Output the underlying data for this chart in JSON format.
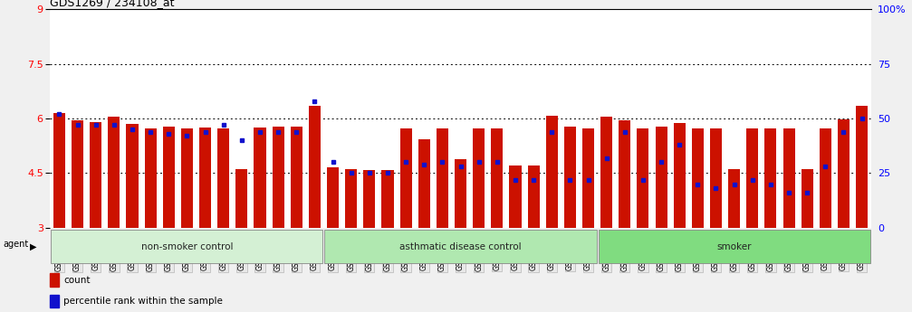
{
  "title": "GDS1269 / 234108_at",
  "samples": [
    "GSM38345",
    "GSM38346",
    "GSM38348",
    "GSM38350",
    "GSM38351",
    "GSM38353",
    "GSM38355",
    "GSM38356",
    "GSM38358",
    "GSM38362",
    "GSM38368",
    "GSM38371",
    "GSM38373",
    "GSM38377",
    "GSM38385",
    "GSM38361",
    "GSM38363",
    "GSM38364",
    "GSM38365",
    "GSM38370",
    "GSM38372",
    "GSM38375",
    "GSM38378",
    "GSM38379",
    "GSM38381",
    "GSM38383",
    "GSM38386",
    "GSM38387",
    "GSM38388",
    "GSM38389",
    "GSM38347",
    "GSM38349",
    "GSM38352",
    "GSM38354",
    "GSM38357",
    "GSM38359",
    "GSM38360",
    "GSM38366",
    "GSM38367",
    "GSM38369",
    "GSM38374",
    "GSM38376",
    "GSM38380",
    "GSM38382",
    "GSM38384"
  ],
  "counts": [
    6.15,
    5.95,
    5.9,
    6.05,
    5.85,
    5.72,
    5.78,
    5.72,
    5.75,
    5.72,
    4.62,
    5.75,
    5.78,
    5.78,
    6.35,
    4.65,
    4.62,
    4.58,
    4.58,
    5.72,
    5.42,
    5.72,
    4.88,
    5.72,
    5.72,
    4.72,
    4.72,
    6.08,
    5.78,
    5.72,
    6.05,
    5.95,
    5.72,
    5.78,
    5.88,
    5.72,
    5.72,
    4.62,
    5.72,
    5.72,
    5.72,
    4.62,
    5.72,
    5.98,
    6.35
  ],
  "percentile_ranks": [
    52,
    47,
    47,
    47,
    45,
    44,
    43,
    42,
    44,
    47,
    40,
    44,
    44,
    44,
    58,
    30,
    25,
    25,
    25,
    30,
    29,
    30,
    28,
    30,
    30,
    22,
    22,
    44,
    22,
    22,
    32,
    44,
    22,
    30,
    38,
    20,
    18,
    20,
    22,
    20,
    16,
    16,
    28,
    44,
    50
  ],
  "groups": [
    {
      "name": "non-smoker control",
      "start": 0,
      "end": 15
    },
    {
      "name": "asthmatic disease control",
      "start": 15,
      "end": 30
    },
    {
      "name": "smoker",
      "start": 30,
      "end": 45
    }
  ],
  "group_colors": [
    "#d4f0d4",
    "#b0e8b0",
    "#80dc80"
  ],
  "bar_color": "#cc1100",
  "dot_color": "#1111cc",
  "ylim_left": [
    3,
    9
  ],
  "yticks_left": [
    3,
    4.5,
    6,
    7.5,
    9
  ],
  "ylim_right": [
    0,
    100
  ],
  "yticks_right": [
    0,
    25,
    50,
    75,
    100
  ],
  "hlines": [
    4.5,
    6.0,
    7.5
  ],
  "bar_width": 0.65,
  "fig_bg": "#f0f0f0",
  "plot_bg": "#ffffff",
  "tick_label_bg": "#e8e8e8"
}
